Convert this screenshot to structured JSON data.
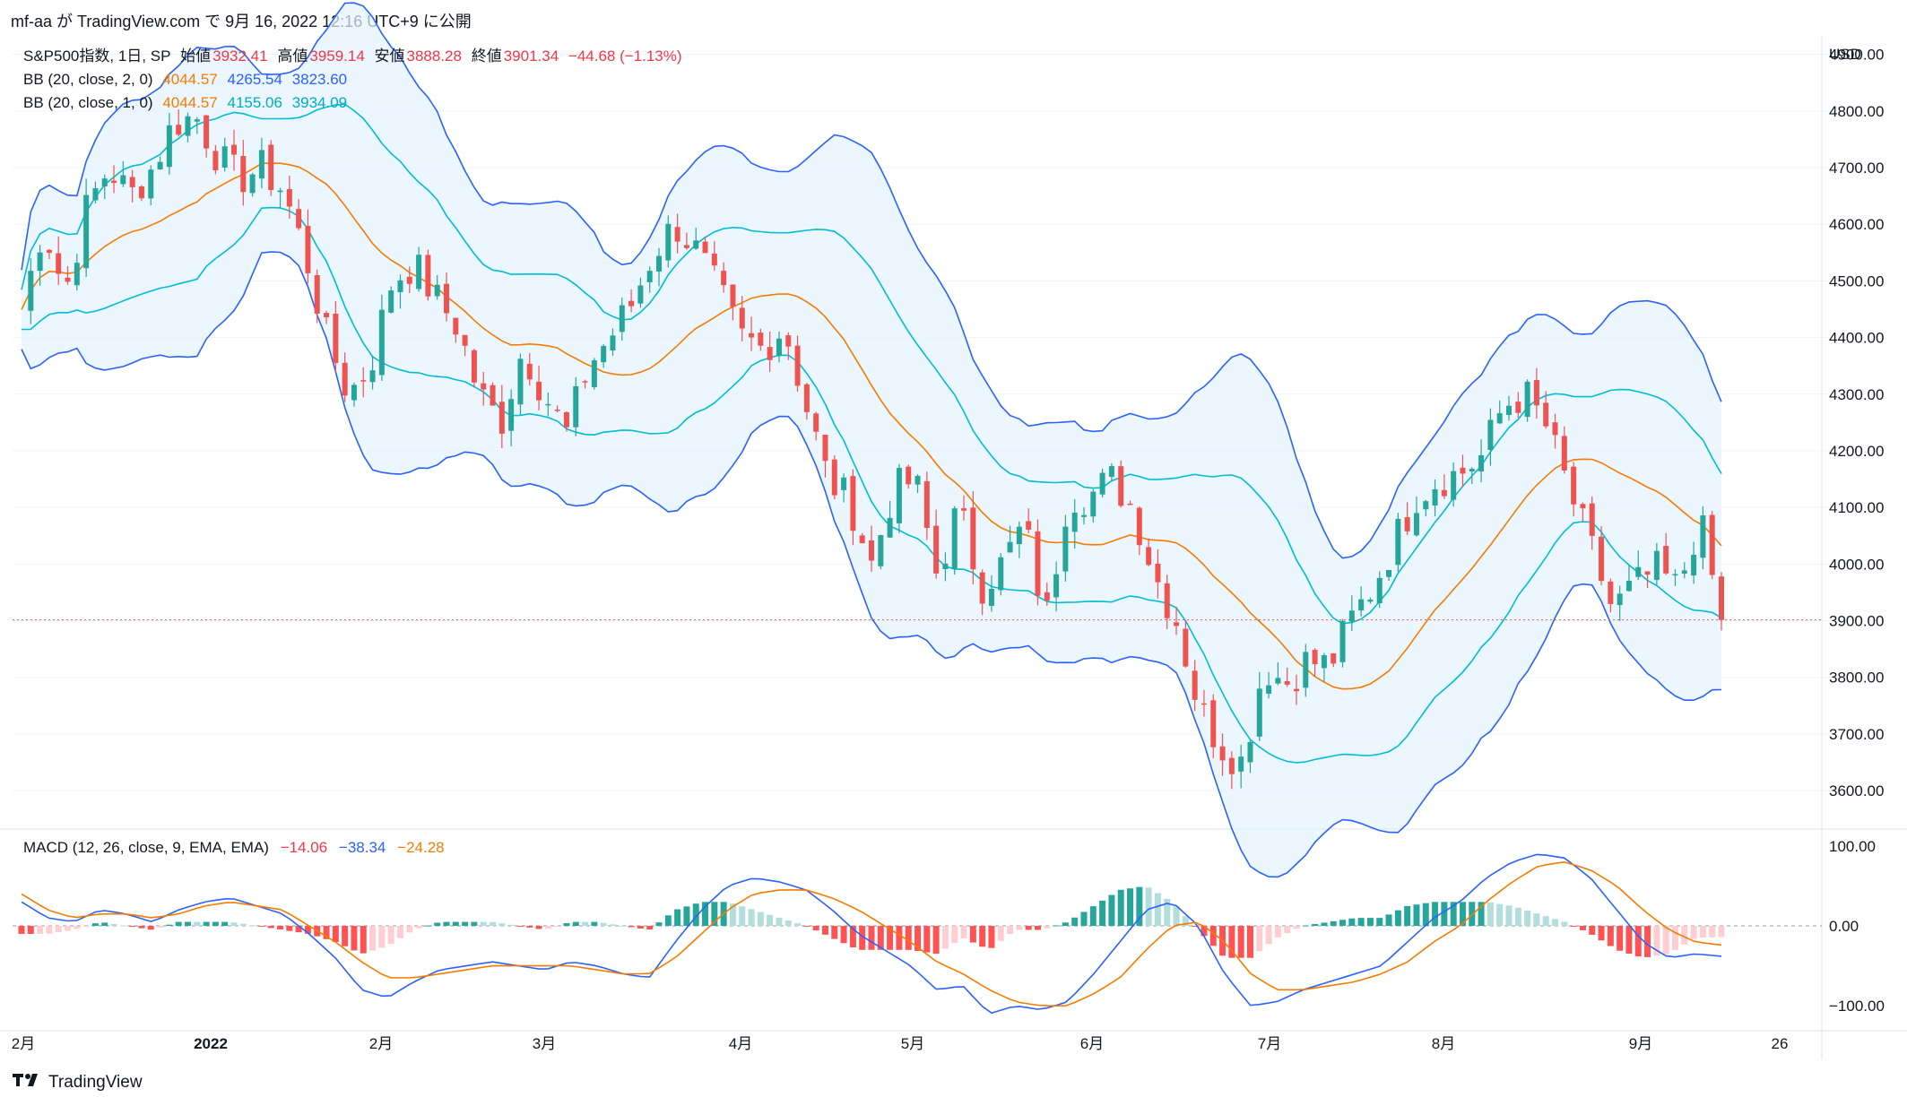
{
  "header": {
    "text": "mf-aa が TradingView.com で 9月 16, 2022 12:16 UTC+9 に公開"
  },
  "legend": {
    "title": "S&P500指数, 1日, SP",
    "open_label": "始値",
    "open": "3932.41",
    "high_label": "高値",
    "high": "3959.14",
    "low_label": "安値",
    "low": "3888.28",
    "close_label": "終値",
    "close": "3901.34",
    "change": "−44.68 (−1.13%)",
    "bb2": {
      "name": "BB (20, close, 2, 0)",
      "basis": "4044.57",
      "upper": "4265.54",
      "lower": "3823.60"
    },
    "bb1": {
      "name": "BB (20, close, 1, 0)",
      "basis": "4044.57",
      "upper": "4155.06",
      "lower": "3934.09"
    }
  },
  "macd_legend": {
    "name": "MACD (12, 26, close, 9, EMA, EMA)",
    "hist": "−14.06",
    "macd": "−38.34",
    "signal": "−24.28"
  },
  "footer": {
    "brand": "TradingView",
    "logo": "tradingview-logo"
  },
  "colors": {
    "up": "#26a69a",
    "down": "#ef5350",
    "bb2": "#2962ff",
    "bb1": "#00bcd4",
    "basis": "#f57c00",
    "macd": "#2962ff",
    "signal": "#f57c00",
    "hist_up_strong": "#26a69a",
    "hist_up_weak": "#b2dfdb",
    "hist_down_strong": "#ff5252",
    "hist_down_weak": "#ffcdd2",
    "band_fill": "#e3f2fd"
  },
  "chart_data": [
    {
      "type": "candlestick",
      "title": "S&P500指数, 1日, SP",
      "currency": "USD",
      "ylim": [
        3540,
        4920
      ],
      "yticks": [
        "4900.00",
        "4800.00",
        "4700.00",
        "4600.00",
        "4500.00",
        "4400.00",
        "4300.00",
        "4200.00",
        "4100.00",
        "4000.00",
        "3900.00",
        "3800.00",
        "3700.00",
        "3600.00"
      ],
      "last_price": 3901.34,
      "x_labels": [
        "2月",
        "2022",
        "2月",
        "3月",
        "4月",
        "5月",
        "6月",
        "7月",
        "8月",
        "9月",
        "26"
      ],
      "close_series_approx": [
        4450,
        4600,
        4480,
        4630,
        4700,
        4650,
        4700,
        4780,
        4790,
        4720,
        4680,
        4700,
        4660,
        4550,
        4400,
        4300,
        4350,
        4500,
        4530,
        4470,
        4420,
        4300,
        4250,
        4380,
        4300,
        4230,
        4350,
        4400,
        4460,
        4550,
        4600,
        4550,
        4480,
        4400,
        4380,
        4420,
        4280,
        4150,
        4110,
        4000,
        4130,
        4150,
        3980,
        4100,
        3960,
        4000,
        4070,
        3900,
        4120,
        4120,
        4150,
        4100,
        3980,
        3900,
        3750,
        3680,
        3650,
        3820,
        3790,
        3830,
        3820,
        3900,
        3960,
        4040,
        4120,
        4150,
        4160,
        4190,
        4280,
        4300,
        4240,
        4130,
        4030,
        3920,
        3960,
        3990,
        3955,
        4080,
        3901
      ],
      "series": [
        {
          "name": "BB (20, close, 2, 0) upper",
          "last": 4265.54
        },
        {
          "name": "BB basis",
          "last": 4044.57
        },
        {
          "name": "BB (20, close, 2, 0) lower",
          "last": 3823.6
        },
        {
          "name": "BB (20, close, 1, 0) upper",
          "last": 4155.06
        },
        {
          "name": "BB (20, close, 1, 0) lower",
          "last": 3934.09
        }
      ]
    },
    {
      "type": "macd",
      "title": "MACD (12, 26, close, 9, EMA, EMA)",
      "ylim": [
        -120,
        110
      ],
      "yticks": [
        "100.00",
        "0.00",
        "−100.00"
      ],
      "last": {
        "hist": -14.06,
        "macd": -38.34,
        "signal": -24.28
      },
      "series": [
        {
          "name": "MACD",
          "values_approx": [
            30,
            10,
            5,
            20,
            15,
            5,
            20,
            30,
            35,
            25,
            15,
            -10,
            -40,
            -80,
            -90,
            -70,
            -55,
            -50,
            -45,
            -50,
            -55,
            -45,
            -50,
            -60,
            -65,
            -20,
            20,
            50,
            60,
            55,
            45,
            20,
            -10,
            -30,
            -50,
            -80,
            -75,
            -110,
            -100,
            -105,
            -95,
            -60,
            -20,
            20,
            30,
            0,
            -60,
            -100,
            -95,
            -80,
            -70,
            -60,
            -50,
            -20,
            10,
            30,
            60,
            80,
            90,
            85,
            60,
            20,
            -20,
            -40,
            -35,
            -38
          ]
        },
        {
          "name": "Signal",
          "values_approx": [
            40,
            20,
            10,
            15,
            15,
            10,
            15,
            25,
            30,
            25,
            20,
            0,
            -20,
            -45,
            -65,
            -65,
            -60,
            -55,
            -50,
            -50,
            -50,
            -50,
            -55,
            -60,
            -60,
            -40,
            -10,
            20,
            40,
            45,
            45,
            35,
            20,
            0,
            -20,
            -45,
            -60,
            -80,
            -95,
            -100,
            -100,
            -85,
            -65,
            -30,
            0,
            5,
            -20,
            -60,
            -80,
            -80,
            -75,
            -70,
            -60,
            -45,
            -20,
            0,
            30,
            55,
            75,
            80,
            70,
            50,
            20,
            -5,
            -20,
            -24
          ]
        }
      ]
    }
  ]
}
